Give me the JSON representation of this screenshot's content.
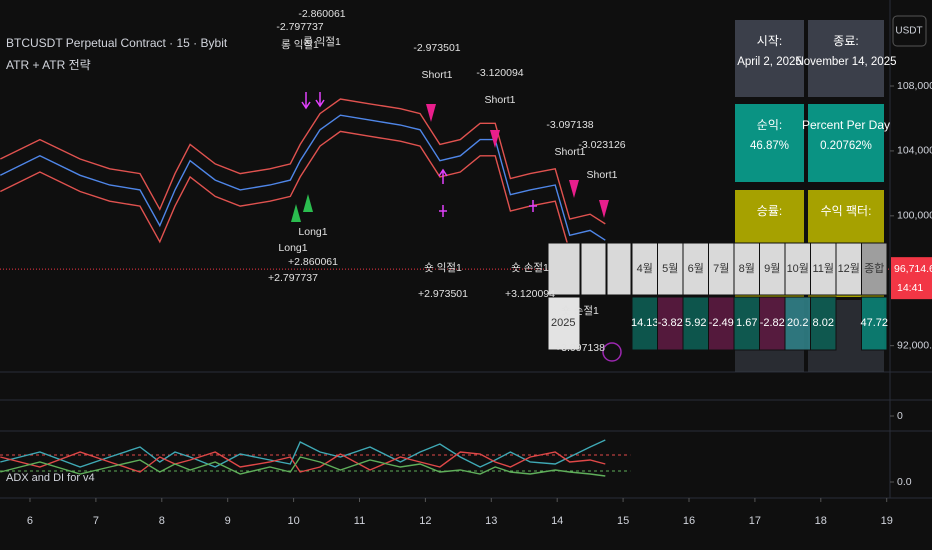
{
  "chart_data": [
    {
      "type": "line",
      "title": "BTCUSDT Perpetual Contract · 15 · Bybit",
      "subtitle": "ATR + ATR 전략",
      "x": [
        5.55,
        6.15,
        6.76,
        7.21,
        7.67,
        7.97,
        8.2,
        8.43,
        8.81,
        9.19,
        9.64,
        9.95,
        10.1,
        10.4,
        10.71,
        11.16,
        11.62,
        11.92,
        12.22,
        12.53,
        12.83,
        13.06,
        13.29,
        13.59,
        13.97,
        14.19,
        14.5,
        14.73
      ],
      "xlim": [
        5.545,
        19.05
      ],
      "ylim": [
        90500,
        113300
      ],
      "yticks": [
        {
          "value": 92000,
          "label": "92,000.0"
        },
        {
          "value": 100000,
          "label": "100,000.0"
        },
        {
          "value": 104000,
          "label": "104,000.0"
        },
        {
          "value": 108000,
          "label": "108,000.0"
        }
      ],
      "series": [
        {
          "color": "#e0524f",
          "values": [
            103500,
            104700,
            103500,
            102900,
            102600,
            100400,
            102600,
            104400,
            103200,
            102600,
            102900,
            103200,
            104400,
            106300,
            107200,
            106900,
            106600,
            106300,
            104400,
            104700,
            105700,
            105700,
            102300,
            102600,
            102900,
            99800,
            100100,
            99500
          ]
        },
        {
          "color": "#4f86e8",
          "values": [
            102500,
            103700,
            102500,
            101900,
            101600,
            99400,
            101600,
            103400,
            102200,
            101600,
            101900,
            102200,
            103400,
            105300,
            106200,
            105900,
            105600,
            105300,
            103400,
            103700,
            104700,
            104700,
            101300,
            101600,
            101900,
            98800,
            99100,
            98500
          ]
        },
        {
          "color": "#e0524f",
          "values": [
            101500,
            102700,
            101500,
            100900,
            100600,
            98400,
            100600,
            102400,
            101200,
            100600,
            100900,
            101200,
            102400,
            104300,
            105200,
            104900,
            104600,
            104300,
            102400,
            102700,
            103700,
            103700,
            100300,
            100600,
            100900,
            97800,
            98100,
            97500
          ]
        }
      ],
      "last_value": {
        "value": 96714.6,
        "label": "96,714.6"
      },
      "last_time": "14:41",
      "last_color": "#f23645"
    },
    {
      "type": "line",
      "title": "ADX and DI for v4",
      "x": [
        5.55,
        6.15,
        6.76,
        7.21,
        7.67,
        7.97,
        8.2,
        8.43,
        8.81,
        9.19,
        9.64,
        9.95,
        10.1,
        10.4,
        10.71,
        11.16,
        11.62,
        11.92,
        12.22,
        12.53,
        12.83,
        13.06,
        13.29,
        13.59,
        13.97,
        14.19,
        14.5,
        14.73
      ],
      "xlim": [
        5.545,
        19.05
      ],
      "xticks": [
        6,
        7,
        8,
        9,
        10,
        11,
        12,
        13,
        14,
        15,
        16,
        17,
        18,
        19
      ],
      "ylim": [
        -8,
        50
      ],
      "yticks": [
        {
          "value": 0,
          "label": "0.0"
        }
      ],
      "series": [
        {
          "color": "#3fa9b5",
          "values": [
            20,
            30,
            15,
            25,
            35,
            20,
            30,
            25,
            15,
            28,
            22,
            18,
            40,
            30,
            25,
            35,
            20,
            30,
            38,
            25,
            15,
            22,
            30,
            20,
            18,
            25,
            35,
            42
          ]
        },
        {
          "color": "#e04848",
          "values": [
            25,
            15,
            30,
            20,
            10,
            25,
            18,
            22,
            30,
            15,
            20,
            25,
            10,
            15,
            28,
            12,
            25,
            20,
            15,
            30,
            28,
            20,
            15,
            25,
            30,
            20,
            22,
            18
          ]
        },
        {
          "color": "#5fae5a",
          "values": [
            10,
            20,
            8,
            15,
            22,
            10,
            18,
            12,
            20,
            8,
            15,
            10,
            25,
            20,
            12,
            22,
            15,
            18,
            10,
            12,
            8,
            15,
            10,
            8,
            12,
            10,
            8,
            6
          ]
        }
      ],
      "hlines": [
        {
          "value": 27,
          "color": "#e04848"
        },
        {
          "value": 11,
          "color": "#5fae5a"
        }
      ]
    },
    {
      "type": "line",
      "ylim": [
        -1,
        1
      ],
      "yticks": [
        0
      ]
    }
  ],
  "currency": "USDT",
  "stats": [
    {
      "label": "시작:",
      "value": "April 2, 2025"
    },
    {
      "label": "종료:",
      "value": "November 14, 2025"
    },
    {
      "label": "순익:",
      "value": "46.87%"
    },
    {
      "label": "Percent Per Day",
      "value": "0.20762%"
    },
    {
      "label": "승률:"
    },
    {
      "label": "수익 팩터:"
    }
  ],
  "monthly_table": {
    "headers": [
      "4월",
      "5월",
      "6월",
      "7월",
      "8월",
      "9월",
      "10월",
      "11월",
      "12월",
      "종합"
    ],
    "year": "2025",
    "values": [
      14.13,
      -3.82,
      5.92,
      -2.49,
      1.67,
      -2.82,
      20.2,
      8.02,
      null,
      47.72
    ]
  },
  "trade_labels": [
    [
      "-2.860061",
      "롱 익절1"
    ],
    [
      "-2.797737",
      "롱 익절1"
    ],
    [
      "-2.973501",
      "Short1"
    ],
    [
      "-3.120094",
      "Short1"
    ],
    [
      "-3.097138",
      "Short1"
    ],
    [
      "-3.023126",
      "Short1"
    ],
    [
      "Long1",
      "+2.797737"
    ],
    [
      "Long1",
      "+2.860061"
    ],
    [
      "숏 익절1",
      "+2.973501"
    ],
    [
      "숏 손절1",
      "+3.120094"
    ],
    [
      "숏 손절1",
      "+3.097138"
    ]
  ]
}
